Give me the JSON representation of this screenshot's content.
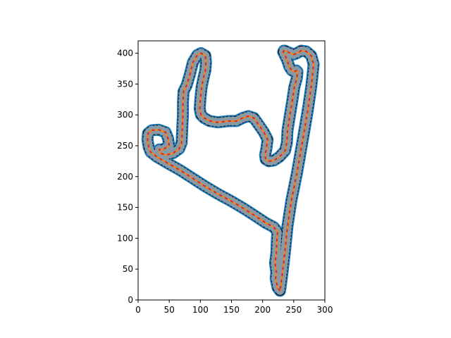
{
  "chart_data": {
    "type": "line",
    "title": "",
    "xlabel": "",
    "ylabel": "",
    "xlim": [
      0,
      300
    ],
    "ylim": [
      420,
      0
    ],
    "y_inverted": true,
    "grid": false,
    "x_ticks": [
      0,
      50,
      100,
      150,
      200,
      250,
      300
    ],
    "y_ticks": [
      0,
      50,
      100,
      150,
      200,
      250,
      300,
      350,
      400
    ],
    "colors": {
      "track_fill": "#8a9aa5",
      "outer_edge": "#1f77b4",
      "centerline": "#ff7f0e",
      "dashes": "#d62728",
      "pixels": "#000000"
    },
    "series": [
      {
        "style": "track-surface",
        "x": [
          228,
          224,
          221,
          222,
          220,
          222,
          223,
          224,
          218,
          205,
          190,
          170,
          150,
          128,
          108,
          88,
          68,
          47,
          30,
          20,
          17,
          15,
          16,
          22,
          33,
          44,
          48,
          50,
          40,
          34,
          35,
          45,
          56,
          66,
          70,
          71,
          72,
          72,
          73,
          78,
          83,
          88,
          95,
          101,
          108,
          109,
          108,
          105,
          102,
          100,
          99,
          101,
          106,
          115,
          128,
          145,
          158,
          168,
          177,
          186,
          193,
          202,
          208,
          206,
          204,
          205,
          210,
          218,
          227,
          236,
          239,
          240,
          244,
          248,
          251,
          255,
          256,
          254,
          251,
          247,
          243,
          239,
          235,
          233,
          234,
          236,
          240,
          250,
          255,
          262,
          270,
          278,
          282,
          280,
          278,
          273,
          268,
          262,
          255,
          246,
          240,
          236,
          232,
          229,
          228
        ],
        "y": [
          15,
          20,
          35,
          45,
          60,
          75,
          100,
          110,
          118,
          125,
          135,
          148,
          160,
          172,
          184,
          197,
          210,
          222,
          232,
          240,
          248,
          260,
          270,
          275,
          276,
          272,
          262,
          250,
          244,
          244,
          238,
          235,
          238,
          245,
          255,
          280,
          300,
          320,
          338,
          348,
          365,
          385,
          397,
          400,
          396,
          385,
          372,
          360,
          345,
          325,
          310,
          300,
          295,
          290,
          288,
          290,
          290,
          295,
          298,
          295,
          285,
          272,
          260,
          245,
          235,
          228,
          225,
          226,
          232,
          242,
          255,
          275,
          300,
          325,
          345,
          360,
          370,
          372,
          370,
          372,
          378,
          390,
          398,
          402,
          404,
          404,
          402,
          398,
          400,
          404,
          403,
          396,
          382,
          362,
          345,
          310,
          280,
          245,
          205,
          160,
          120,
          80,
          45,
          22,
          15
        ]
      },
      {
        "style": "centerline",
        "x": [
          228,
          224,
          221,
          222,
          220,
          222,
          223,
          224,
          218,
          205,
          190,
          170,
          150,
          128,
          108,
          88,
          68,
          47,
          30,
          20,
          17,
          15,
          16,
          22,
          33,
          44,
          48,
          50,
          40,
          34,
          35,
          45,
          56,
          66,
          70,
          71,
          72,
          72,
          73,
          78,
          83,
          88,
          95,
          101,
          108,
          109,
          108,
          105,
          102,
          100,
          99,
          101,
          106,
          115,
          128,
          145,
          158,
          168,
          177,
          186,
          193,
          202,
          208,
          206,
          204,
          205,
          210,
          218,
          227,
          236,
          239,
          240,
          244,
          248,
          251,
          255,
          256,
          254,
          251,
          247,
          243,
          239,
          235,
          233,
          234,
          236,
          240,
          250,
          255,
          262,
          270,
          278,
          282,
          280,
          278,
          273,
          268,
          262,
          255,
          246,
          240,
          236,
          232,
          229,
          228
        ],
        "y": [
          15,
          20,
          35,
          45,
          60,
          75,
          100,
          110,
          118,
          125,
          135,
          148,
          160,
          172,
          184,
          197,
          210,
          222,
          232,
          240,
          248,
          260,
          270,
          275,
          276,
          272,
          262,
          250,
          244,
          244,
          238,
          235,
          238,
          245,
          255,
          280,
          300,
          320,
          338,
          348,
          365,
          385,
          397,
          400,
          396,
          385,
          372,
          360,
          345,
          325,
          310,
          300,
          295,
          290,
          288,
          290,
          290,
          295,
          298,
          295,
          285,
          272,
          260,
          245,
          235,
          228,
          225,
          226,
          232,
          242,
          255,
          275,
          300,
          325,
          345,
          360,
          370,
          372,
          370,
          372,
          378,
          390,
          398,
          402,
          404,
          404,
          402,
          398,
          400,
          404,
          403,
          396,
          382,
          362,
          345,
          310,
          280,
          245,
          205,
          160,
          120,
          80,
          45,
          22,
          15
        ]
      }
    ]
  }
}
